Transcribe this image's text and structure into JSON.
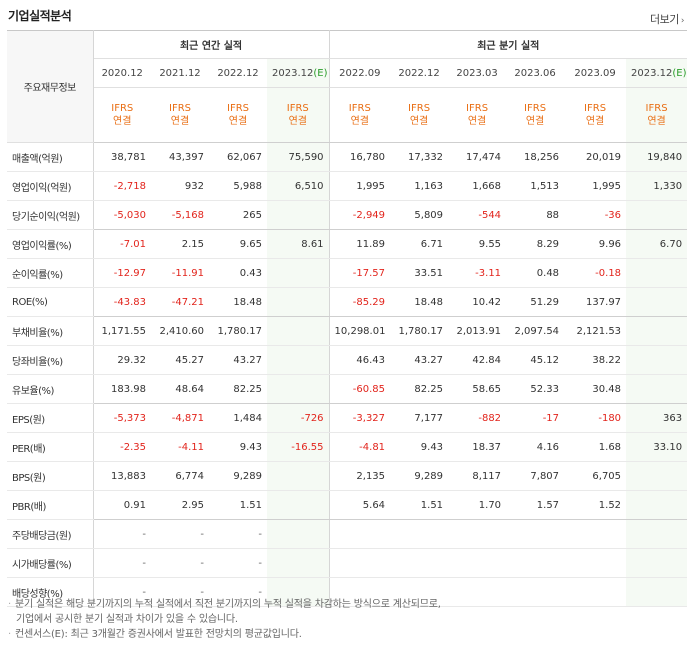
{
  "header": {
    "title": "기업실적분석",
    "more_label": "더보기"
  },
  "table": {
    "label_header": "주요재무정보",
    "annual_group": "최근 연간 실적",
    "quarter_group": "최근 분기 실적",
    "periods_annual": [
      "2020.12",
      "2021.12",
      "2022.12",
      "2023.12"
    ],
    "periods_quarter": [
      "2022.09",
      "2022.12",
      "2023.03",
      "2023.06",
      "2023.09",
      "2023.12"
    ],
    "estimate_mark": "(E)",
    "ifrs_line1": "IFRS",
    "ifrs_line2": "연결",
    "rows": [
      {
        "label": "매출액(억원)",
        "values": [
          "38,781",
          "43,397",
          "62,067",
          "75,590",
          "16,780",
          "17,332",
          "17,474",
          "18,256",
          "20,019",
          "19,840"
        ]
      },
      {
        "label": "영업이익(억원)",
        "values": [
          "-2,718",
          "932",
          "5,988",
          "6,510",
          "1,995",
          "1,163",
          "1,668",
          "1,513",
          "1,995",
          "1,330"
        ]
      },
      {
        "label": "당기순이익(억원)",
        "values": [
          "-5,030",
          "-5,168",
          "265",
          "",
          "-2,949",
          "5,809",
          "-544",
          "88",
          "-36",
          ""
        ]
      },
      {
        "label": "영업이익률(%)",
        "values": [
          "-7.01",
          "2.15",
          "9.65",
          "8.61",
          "11.89",
          "6.71",
          "9.55",
          "8.29",
          "9.96",
          "6.70"
        ]
      },
      {
        "label": "순이익률(%)",
        "values": [
          "-12.97",
          "-11.91",
          "0.43",
          "",
          "-17.57",
          "33.51",
          "-3.11",
          "0.48",
          "-0.18",
          ""
        ]
      },
      {
        "label": "ROE(%)",
        "values": [
          "-43.83",
          "-47.21",
          "18.48",
          "",
          "-85.29",
          "18.48",
          "10.42",
          "51.29",
          "137.97",
          ""
        ]
      },
      {
        "label": "부채비율(%)",
        "values": [
          "1,171.55",
          "2,410.60",
          "1,780.17",
          "",
          "10,298.01",
          "1,780.17",
          "2,013.91",
          "2,097.54",
          "2,121.53",
          ""
        ]
      },
      {
        "label": "당좌비율(%)",
        "values": [
          "29.32",
          "45.27",
          "43.27",
          "",
          "46.43",
          "43.27",
          "42.84",
          "45.12",
          "38.22",
          ""
        ]
      },
      {
        "label": "유보율(%)",
        "values": [
          "183.98",
          "48.64",
          "82.25",
          "",
          "-60.85",
          "82.25",
          "58.65",
          "52.33",
          "30.48",
          ""
        ]
      },
      {
        "label": "EPS(원)",
        "values": [
          "-5,373",
          "-4,871",
          "1,484",
          "-726",
          "-3,327",
          "7,177",
          "-882",
          "-17",
          "-180",
          "363"
        ]
      },
      {
        "label": "PER(배)",
        "values": [
          "-2.35",
          "-4.11",
          "9.43",
          "-16.55",
          "-4.81",
          "9.43",
          "18.37",
          "4.16",
          "1.68",
          "33.10"
        ]
      },
      {
        "label": "BPS(원)",
        "values": [
          "13,883",
          "6,774",
          "9,289",
          "",
          "2,135",
          "9,289",
          "8,117",
          "7,807",
          "6,705",
          ""
        ]
      },
      {
        "label": "PBR(배)",
        "values": [
          "0.91",
          "2.95",
          "1.51",
          "",
          "5.64",
          "1.51",
          "1.70",
          "1.57",
          "1.52",
          ""
        ]
      },
      {
        "label": "주당배당금(원)",
        "values": [
          "-",
          "-",
          "-",
          "",
          "",
          "",
          "",
          "",
          "",
          ""
        ]
      },
      {
        "label": "시가배당률(%)",
        "values": [
          "-",
          "-",
          "-",
          "",
          "",
          "",
          "",
          "",
          "",
          ""
        ]
      },
      {
        "label": "배당성향(%)",
        "values": [
          "-",
          "-",
          "-",
          "",
          "",
          "",
          "",
          "",
          "",
          ""
        ]
      }
    ],
    "group_end_rows": [
      2,
      5,
      8,
      12
    ]
  },
  "notes": {
    "line1": "분기 실적은 해당 분기까지의 누적 실적에서 직전 분기까지의 누적 실적을 차감하는 방식으로 계산되므로,",
    "line2": "기업에서 공시한 분기 실적과 차이가 있을 수 있습니다.",
    "line3": "컨센서스(E): 최근 3개월간 증권사에서 발표한 전망치의 평균값입니다."
  },
  "colors": {
    "negative": "#e2241c",
    "ifrs": "#e96e14",
    "estimate_bg": "#f5faf4",
    "estimate_mark": "#2a9d2a"
  }
}
